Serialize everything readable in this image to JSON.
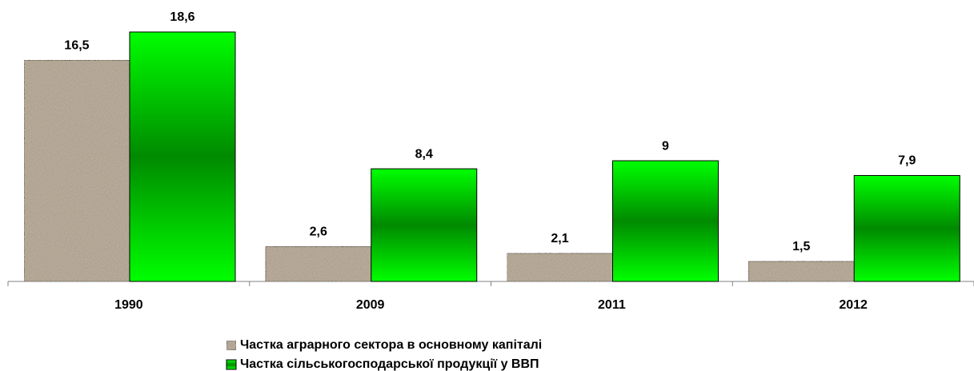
{
  "chart_data": {
    "type": "bar",
    "categories": [
      "1990",
      "2009",
      "2011",
      "2012"
    ],
    "series": [
      {
        "name": "Частка аграрного сектора в основному капіталі",
        "color": "#a89a86",
        "values": [
          16.5,
          2.6,
          2.1,
          1.5
        ],
        "value_labels": [
          "16,5",
          "2,6",
          "2,1",
          "1,5"
        ]
      },
      {
        "name": "Частка сільськогосподарської продукції у ВВП",
        "color": "#00ff00",
        "values": [
          18.6,
          8.4,
          9,
          7.9
        ],
        "value_labels": [
          "18,6",
          "8,4",
          "9",
          "7,9"
        ]
      }
    ]
  }
}
